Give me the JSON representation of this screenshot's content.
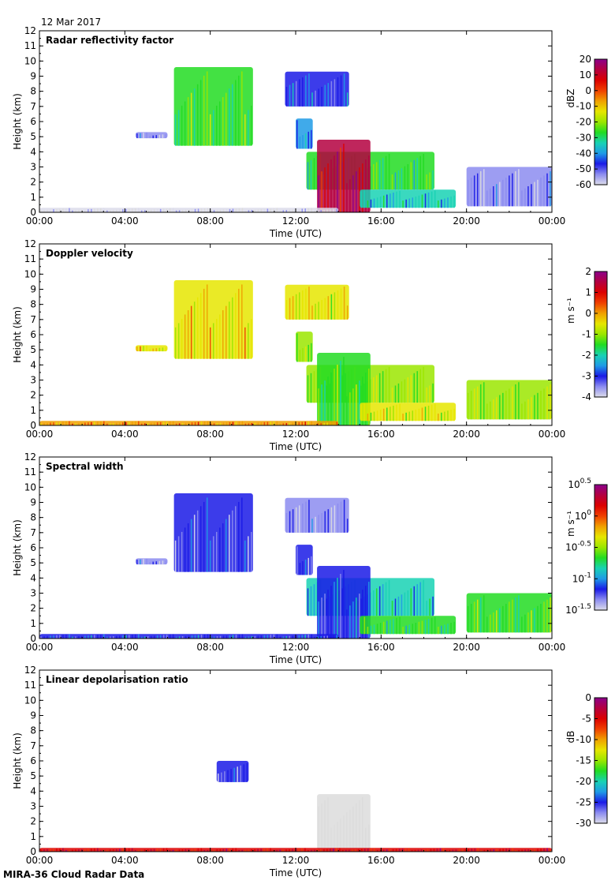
{
  "header": {
    "date": "12 Mar 2017"
  },
  "footer": {
    "caption": "MIRA-36 Cloud Radar Data"
  },
  "chart_data": [
    {
      "type": "heatmap",
      "title": "Radar reflectivity factor",
      "xlabel": "Time (UTC)",
      "ylabel": "Height (km)",
      "xticks": [
        "00:00",
        "04:00",
        "08:00",
        "12:00",
        "16:00",
        "20:00",
        "00:00"
      ],
      "xlim": [
        0,
        24
      ],
      "ylim": [
        0,
        12
      ],
      "yticks": [
        0,
        1,
        2,
        3,
        4,
        5,
        6,
        7,
        8,
        9,
        10,
        11,
        12
      ],
      "colorbar": {
        "label": "dBZ",
        "range": [
          -60,
          20
        ],
        "ticks": [
          "20",
          "10",
          "0",
          "-10",
          "-20",
          "-30",
          "-40",
          "-50",
          "-60"
        ]
      },
      "features": [
        {
          "t0": 6.3,
          "t1": 10.0,
          "z0": 4.4,
          "z1": 9.6,
          "level": 0.45
        },
        {
          "t0": 4.5,
          "t1": 6.0,
          "z0": 4.9,
          "z1": 5.3,
          "level": 0.1
        },
        {
          "t0": 11.5,
          "t1": 14.5,
          "z0": 7.0,
          "z1": 9.3,
          "level": 0.2
        },
        {
          "t0": 12.0,
          "t1": 12.8,
          "z0": 4.2,
          "z1": 6.2,
          "level": 0.25
        },
        {
          "t0": 12.5,
          "t1": 18.5,
          "z0": 1.5,
          "z1": 4.0,
          "level": 0.4
        },
        {
          "t0": 13.0,
          "t1": 15.5,
          "z0": 0.0,
          "z1": 4.8,
          "level": 0.9
        },
        {
          "t0": 15.0,
          "t1": 19.5,
          "z0": 0.3,
          "z1": 1.5,
          "level": 0.3
        },
        {
          "t0": 20.0,
          "t1": 24.0,
          "z0": 0.4,
          "z1": 3.0,
          "level": 0.1
        },
        {
          "t0": 0.0,
          "t1": 14.0,
          "z0": 0.0,
          "z1": 0.3,
          "level": 0.0
        }
      ]
    },
    {
      "type": "heatmap",
      "title": "Doppler velocity",
      "xlabel": "Time (UTC)",
      "ylabel": "Height (km)",
      "xticks": [
        "00:00",
        "04:00",
        "08:00",
        "12:00",
        "16:00",
        "20:00",
        "00:00"
      ],
      "xlim": [
        0,
        24
      ],
      "ylim": [
        0,
        12
      ],
      "yticks": [
        0,
        1,
        2,
        3,
        4,
        5,
        6,
        7,
        8,
        9,
        10,
        11,
        12
      ],
      "colorbar": {
        "label": "m s⁻¹",
        "range": [
          -4,
          2
        ],
        "ticks": [
          "2",
          "1",
          "0",
          "-1",
          "-2",
          "-3",
          "-4"
        ]
      },
      "features": [
        {
          "t0": 6.3,
          "t1": 10.0,
          "z0": 4.4,
          "z1": 9.6,
          "level": 0.62
        },
        {
          "t0": 4.5,
          "t1": 6.0,
          "z0": 4.9,
          "z1": 5.3,
          "level": 0.6
        },
        {
          "t0": 11.5,
          "t1": 14.5,
          "z0": 7.0,
          "z1": 9.3,
          "level": 0.58
        },
        {
          "t0": 12.0,
          "t1": 12.8,
          "z0": 4.2,
          "z1": 6.2,
          "level": 0.5
        },
        {
          "t0": 12.5,
          "t1": 18.5,
          "z0": 1.5,
          "z1": 4.0,
          "level": 0.5
        },
        {
          "t0": 13.0,
          "t1": 15.5,
          "z0": 0.0,
          "z1": 4.8,
          "level": 0.45
        },
        {
          "t0": 15.0,
          "t1": 19.5,
          "z0": 0.3,
          "z1": 1.5,
          "level": 0.55
        },
        {
          "t0": 20.0,
          "t1": 24.0,
          "z0": 0.4,
          "z1": 3.0,
          "level": 0.5
        },
        {
          "t0": 0.0,
          "t1": 14.0,
          "z0": 0.0,
          "z1": 0.3,
          "level": 0.7
        }
      ]
    },
    {
      "type": "heatmap",
      "title": "Spectral width",
      "xlabel": "Time (UTC)",
      "ylabel": "Height (km)",
      "xticks": [
        "00:00",
        "04:00",
        "08:00",
        "12:00",
        "16:00",
        "20:00",
        "00:00"
      ],
      "xlim": [
        0,
        24
      ],
      "ylim": [
        0,
        12
      ],
      "yticks": [
        0,
        1,
        2,
        3,
        4,
        5,
        6,
        7,
        8,
        9,
        10,
        11,
        12
      ],
      "colorbar": {
        "label": "m s⁻¹",
        "range": [
          -1.5,
          0.5
        ],
        "ticks": [
          "10^0.5",
          "10^0",
          "10^-0.5",
          "10^-1",
          "10^-1.5"
        ]
      },
      "features": [
        {
          "t0": 6.3,
          "t1": 10.0,
          "z0": 4.4,
          "z1": 9.6,
          "level": 0.15
        },
        {
          "t0": 4.5,
          "t1": 6.0,
          "z0": 4.9,
          "z1": 5.3,
          "level": 0.1
        },
        {
          "t0": 11.5,
          "t1": 14.5,
          "z0": 7.0,
          "z1": 9.3,
          "level": 0.1
        },
        {
          "t0": 12.0,
          "t1": 12.8,
          "z0": 4.2,
          "z1": 6.2,
          "level": 0.15
        },
        {
          "t0": 12.5,
          "t1": 18.5,
          "z0": 1.5,
          "z1": 4.0,
          "level": 0.3
        },
        {
          "t0": 13.0,
          "t1": 15.5,
          "z0": 0.0,
          "z1": 4.8,
          "level": 0.2
        },
        {
          "t0": 15.0,
          "t1": 19.5,
          "z0": 0.3,
          "z1": 1.5,
          "level": 0.4
        },
        {
          "t0": 20.0,
          "t1": 24.0,
          "z0": 0.4,
          "z1": 3.0,
          "level": 0.45
        },
        {
          "t0": 0.0,
          "t1": 14.0,
          "z0": 0.0,
          "z1": 0.3,
          "level": 0.2
        }
      ]
    },
    {
      "type": "heatmap",
      "title": "Linear depolarisation ratio",
      "xlabel": "Time (UTC)",
      "ylabel": "Height (km)",
      "xticks": [
        "00:00",
        "04:00",
        "08:00",
        "12:00",
        "16:00",
        "20:00",
        "00:00"
      ],
      "xlim": [
        0,
        24
      ],
      "ylim": [
        0,
        12
      ],
      "yticks": [
        0,
        1,
        2,
        3,
        4,
        5,
        6,
        7,
        8,
        9,
        10,
        11,
        12
      ],
      "colorbar": {
        "label": "dB",
        "range": [
          -30,
          0
        ],
        "ticks": [
          "0",
          "-5",
          "-10",
          "-15",
          "-20",
          "-25",
          "-30"
        ]
      },
      "features": [
        {
          "t0": 8.3,
          "t1": 9.8,
          "z0": 4.6,
          "z1": 6.0,
          "level": 0.15
        },
        {
          "t0": 13.0,
          "t1": 15.5,
          "z0": 0.1,
          "z1": 3.8,
          "level": -1
        },
        {
          "t0": 0.0,
          "t1": 24.0,
          "z0": 0.0,
          "z1": 0.25,
          "level": 0.85
        }
      ]
    }
  ],
  "colors": {
    "colormap": [
      "#dcdcea",
      "#8c8cf0",
      "#1a1ae6",
      "#1f9be6",
      "#18d2b4",
      "#22dc22",
      "#9be600",
      "#e6e600",
      "#f0a000",
      "#f04000",
      "#dc0000",
      "#b40040",
      "#8c008c"
    ],
    "missing": "#dcdcdc"
  }
}
